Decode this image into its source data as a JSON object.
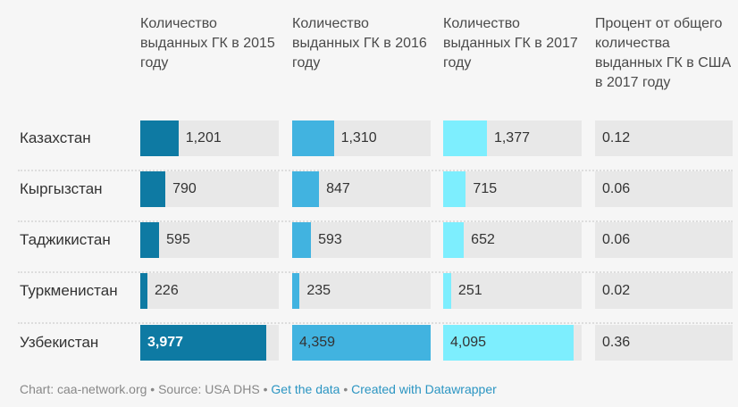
{
  "chart_data": {
    "type": "table",
    "headers": [
      "Количество выданных ГК в 2015 году",
      "Количество выданных ГК в 2016 году",
      "Количество выданных ГК в 2017 году",
      "Процент от общего количества выданных ГК в США в 2017 году"
    ],
    "rows": [
      {
        "country": "Казахстан",
        "y2015": 1201,
        "y2016": 1310,
        "y2017": 1377,
        "l2015": "1,201",
        "l2016": "1,310",
        "l2017": "1,377",
        "pct": "0.12"
      },
      {
        "country": "Кыргызстан",
        "y2015": 790,
        "y2016": 847,
        "y2017": 715,
        "l2015": "790",
        "l2016": "847",
        "l2017": "715",
        "pct": "0.06"
      },
      {
        "country": "Таджикистан",
        "y2015": 595,
        "y2016": 593,
        "y2017": 652,
        "l2015": "595",
        "l2016": "593",
        "l2017": "652",
        "pct": "0.06"
      },
      {
        "country": "Туркменистан",
        "y2015": 226,
        "y2016": 235,
        "y2017": 251,
        "l2015": "226",
        "l2016": "235",
        "l2017": "251",
        "pct": "0.02"
      },
      {
        "country": "Узбекистан",
        "y2015": 3977,
        "y2016": 4359,
        "y2017": 4095,
        "l2015": "3,977",
        "l2016": "4,359",
        "l2017": "4,095",
        "pct": "0.36"
      }
    ],
    "scale_max": 4359,
    "colors": [
      "#0e7aa3",
      "#41b3e0",
      "#7deefe"
    ]
  },
  "footer": {
    "chart": "Chart: caa-network.org",
    "source": "Source: USA DHS",
    "get_data": "Get the data",
    "created": "Created with Datawrapper",
    "sep": " • "
  }
}
